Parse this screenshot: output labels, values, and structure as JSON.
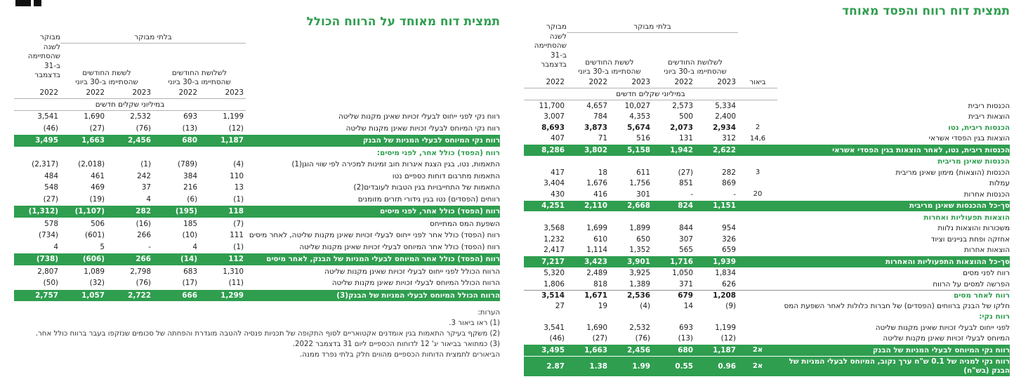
{
  "page": {
    "accent_green": "#2f9e4f"
  },
  "right_table": {
    "title": "תמצית דוח רווח והפסד מאוחד",
    "header": {
      "unaudited": "בלתי מבוקר",
      "audited": "מבוקר\nלשנה\nשהסתיימה\nב-31\nבדצמבר",
      "three_months": "לשלושת החודשים\nשהסתיימו ב-30 ביוני",
      "six_months": "לששת החודשים\nשהסתיימו ב-30 ביוני",
      "note_col": "ביאור",
      "years": [
        "2022",
        "2022",
        "2023",
        "2022",
        "2023"
      ],
      "units": "במיליוני שקלים חדשים"
    },
    "rows": [
      {
        "label": "הכנסות ריבית",
        "note": "",
        "values": [
          "11,700",
          "4,657",
          "10,027",
          "2,573",
          "5,334"
        ],
        "style": "plain"
      },
      {
        "label": "הוצאות ריבית",
        "note": "",
        "values": [
          "3,007",
          "784",
          "4,353",
          "500",
          "2,400"
        ],
        "style": "plain"
      },
      {
        "label": "הכנסות ריבית, נטו",
        "note": "2",
        "values": [
          "8,693",
          "3,873",
          "5,674",
          "2,073",
          "2,934"
        ],
        "style": "bold"
      },
      {
        "label": "הוצאות בגין הפסדי אשראי",
        "note": "14,6",
        "values": [
          "407",
          "71",
          "516",
          "131",
          "312"
        ],
        "style": "plain"
      },
      {
        "label": "הכנסות ריבית, נטו, לאחר הוצאות בגין הפסדי אשראי",
        "note": "",
        "values": [
          "8,286",
          "3,802",
          "5,158",
          "1,942",
          "2,622"
        ],
        "style": "bar"
      },
      {
        "label": "הכנסות שאינן מריבית",
        "style": "section"
      },
      {
        "label": "הכנסות (הוצאות) מימון שאינן מריבית",
        "note": "3",
        "values": [
          "417",
          "18",
          "611",
          "(27)",
          "282"
        ],
        "style": "plain"
      },
      {
        "label": "עמלות",
        "note": "",
        "values": [
          "3,404",
          "1,676",
          "1,756",
          "851",
          "869"
        ],
        "style": "plain"
      },
      {
        "label": "הכנסות אחרות",
        "note": "20",
        "values": [
          "430",
          "416",
          "301",
          "-",
          "-"
        ],
        "style": "plain"
      },
      {
        "label": "סך-כל ההכנסות שאינן מריבית",
        "note": "",
        "values": [
          "4,251",
          "2,110",
          "2,668",
          "824",
          "1,151"
        ],
        "style": "bar"
      },
      {
        "label": "הוצאות תפעוליות ואחרות",
        "style": "section"
      },
      {
        "label": "משכורות והוצאות נלוות",
        "note": "",
        "values": [
          "3,568",
          "1,699",
          "1,899",
          "844",
          "954"
        ],
        "style": "plain"
      },
      {
        "label": "אחזקה ופחת בניינים וציוד",
        "note": "",
        "values": [
          "1,232",
          "610",
          "650",
          "307",
          "326"
        ],
        "style": "plain"
      },
      {
        "label": "הוצאות אחרות",
        "note": "",
        "values": [
          "2,417",
          "1,114",
          "1,352",
          "565",
          "659"
        ],
        "style": "plain"
      },
      {
        "label": "סך-כל ההוצאות התפעוליות והאחרות",
        "note": "",
        "values": [
          "7,217",
          "3,423",
          "3,901",
          "1,716",
          "1,939"
        ],
        "style": "bar"
      },
      {
        "label": "רווח לפני מסים",
        "note": "",
        "values": [
          "5,320",
          "2,489",
          "3,925",
          "1,050",
          "1,834"
        ],
        "style": "plain"
      },
      {
        "label": "הפרשה למסים על הרווח",
        "note": "",
        "values": [
          "1,806",
          "818",
          "1,389",
          "371",
          "626"
        ],
        "style": "plain"
      },
      {
        "label": "רווח לאחר מסים",
        "note": "",
        "values": [
          "3,514",
          "1,671",
          "2,536",
          "679",
          "1,208"
        ],
        "style": "bold",
        "top_border": true
      },
      {
        "label": "חלקו של הבנק ברווחים (הפסדים) של חברות כלולות לאחר השפעת המס",
        "note": "",
        "values": [
          "27",
          "19",
          "(4)",
          "14",
          "(9)"
        ],
        "style": "plain"
      },
      {
        "label": "רווח נקי:",
        "style": "section"
      },
      {
        "label": "לפני ייחוס לבעלי זכויות שאינן מקנות שליטה",
        "note": "",
        "values": [
          "3,541",
          "1,690",
          "2,532",
          "693",
          "1,199"
        ],
        "style": "plain"
      },
      {
        "label": "המיוחס לבעלי זכויות שאינן מקנות שליטה",
        "note": "",
        "values": [
          "(46)",
          "(27)",
          "(76)",
          "(13)",
          "(12)"
        ],
        "style": "plain"
      },
      {
        "label": "רווח נקי המיוחס לבעלי המניות של הבנק",
        "note": "2א",
        "values": [
          "3,495",
          "1,663",
          "2,456",
          "680",
          "1,187"
        ],
        "style": "bar"
      },
      {
        "label": "רווח נקי למניה של 0.1 ש\"ח ערך נקוב, המיוחס לבעלי המניות של הבנק (בש\"ח)",
        "note": "2א",
        "values": [
          "2.87",
          "1.38",
          "1.99",
          "0.55",
          "0.96"
        ],
        "style": "bar"
      }
    ]
  },
  "left_table": {
    "title": "תמצית דוח מאוחד על הרווח הכולל",
    "header": {
      "unaudited": "בלתי מבוקר",
      "audited": "מבוקר\nלשנה\nשהסתיימה\nב-31\nבדצמבר",
      "three_months": "לשלושת החודשים\nשהסתיימו ב-30 ביוני",
      "six_months": "לששת החודשים\nשהסתיימו ב-30 ביוני",
      "years": [
        "2022",
        "2022",
        "2023",
        "2022",
        "2023"
      ],
      "units": "במיליוני שקלים חדשים"
    },
    "rows": [
      {
        "label": "רווח נקי לפני ייחוס לבעלי זכויות שאינן מקנות שליטה",
        "values": [
          "3,541",
          "1,690",
          "2,532",
          "693",
          "1,199"
        ],
        "style": "plain"
      },
      {
        "label": "רווח נקי המיוחס לבעלי זכויות שאינן מקנות שליטה",
        "values": [
          "(46)",
          "(27)",
          "(76)",
          "(13)",
          "(12)"
        ],
        "style": "plain"
      },
      {
        "label": "רווח נקי המיוחס לבעלי המניות של הבנק",
        "values": [
          "3,495",
          "1,663",
          "2,456",
          "680",
          "1,187"
        ],
        "style": "bar"
      },
      {
        "label": "רווח (הפסד) כולל אחר, לפני מיסים:",
        "style": "section"
      },
      {
        "label": "התאמות, נטו, בגין הצגת איגרות חוב זמינות למכירה לפי שווי הוגן(1)",
        "values": [
          "(2,317)",
          "(2,018)",
          "(1)",
          "(789)",
          "(4)"
        ],
        "style": "plain"
      },
      {
        "label": "התאמות מתרגום דוחות כספיים נטו",
        "values": [
          "484",
          "461",
          "242",
          "384",
          "110"
        ],
        "style": "plain"
      },
      {
        "label": "התאמות של התחייבויות בגין הטבות לעובדים(2)",
        "values": [
          "548",
          "469",
          "37",
          "216",
          "13"
        ],
        "style": "plain"
      },
      {
        "label": "רווחים (הפסדים) נטו בגין גידורי תזרים מזומנים",
        "values": [
          "(27)",
          "(19)",
          "4",
          "(6)",
          "(1)"
        ],
        "style": "plain"
      },
      {
        "label": "רווח (הפסד) כולל אחר, לפני מיסים",
        "values": [
          "(1,312)",
          "(1,107)",
          "282",
          "(195)",
          "118"
        ],
        "style": "bar"
      },
      {
        "label": "השפעת המס המתייחס",
        "values": [
          "578",
          "506",
          "(16)",
          "185",
          "(7)"
        ],
        "style": "plain"
      },
      {
        "label": "רווח (הפסד) כולל אחר לפני ייחוס לבעלי זכויות שאינן מקנות שליטה, לאחר מיסים",
        "values": [
          "(734)",
          "(601)",
          "266",
          "(10)",
          "111"
        ],
        "style": "plain"
      },
      {
        "label": "רווח (הפסד) כולל אחר המיוחס לבעלי זכויות שאינן מקנות שליטה",
        "values": [
          "4",
          "5",
          "-",
          "4",
          "(1)"
        ],
        "style": "plain"
      },
      {
        "label": "רווח (הפסד) כולל אחר המיוחס לבעלי המניות של הבנק, לאחר מיסים",
        "values": [
          "(738)",
          "(606)",
          "266",
          "(14)",
          "112"
        ],
        "style": "bar"
      },
      {
        "label": "הרווח הכולל לפני ייחוס לבעלי זכויות שאינן מקנות שליטה",
        "values": [
          "2,807",
          "1,089",
          "2,798",
          "683",
          "1,310"
        ],
        "style": "plain"
      },
      {
        "label": "הרווח הכולל המיוחס לבעלי זכויות שאינן מקנות שליטה",
        "values": [
          "(50)",
          "(32)",
          "(76)",
          "(17)",
          "(11)"
        ],
        "style": "plain"
      },
      {
        "label": "הרווח הכולל המיוחס לבעלי המניות של הבנק(3)",
        "values": [
          "2,757",
          "1,057",
          "2,722",
          "666",
          "1,299"
        ],
        "style": "bar"
      }
    ],
    "footnotes": {
      "heading": "הערות:",
      "items": [
        "(1) ראו ביאור 3.",
        "(2) משקף בעיקר התאמות בגין אומדנים אקטואריים לסוף התקופה של תכניות פנסיה להטבה מוגדרת והפחתה של סכומים שנזקפו בעבר ברווח כולל אחר.",
        "(3) כמתואר בביאור יג' 12 לדוחות הכספיים ליום 31 בדצמבר 2022."
      ],
      "closing": "הביאורים לתמצית הדוחות הכספיים מהווים חלק בלתי נפרד ממנה."
    }
  }
}
